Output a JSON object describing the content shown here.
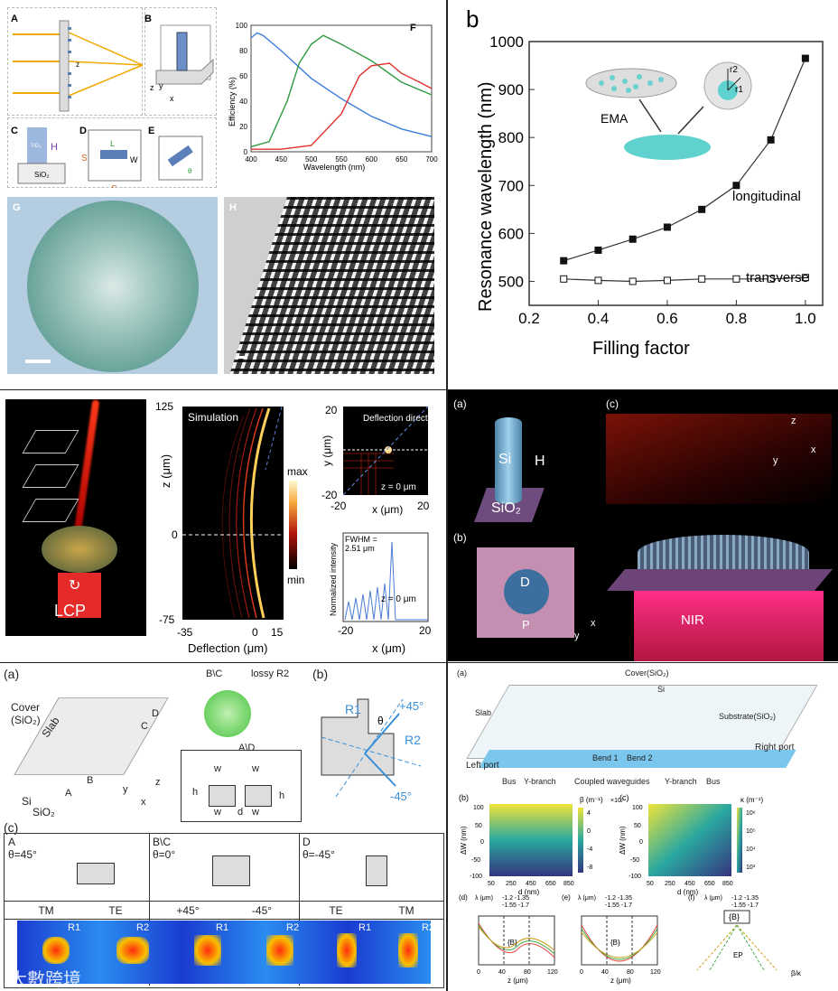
{
  "tl": {
    "A": "A",
    "B": "B",
    "C": "C",
    "D": "D",
    "E": "E",
    "F": "F",
    "G": "G",
    "H": "H",
    "tio2": "TiO₂",
    "sio2": "SiO₂",
    "h": "H",
    "l": "L",
    "w": "W",
    "s": "S",
    "theta": "θ",
    "axis_x": "x",
    "axis_y": "y",
    "axis_z": "z",
    "ylabel": "Efficiency (%)",
    "xlabel": "Wavelength (nm)",
    "yticks": [
      "0",
      "20",
      "40",
      "60",
      "80",
      "100"
    ],
    "xticks": [
      "400",
      "450",
      "500",
      "550",
      "600",
      "650",
      "700"
    ],
    "colors": {
      "blue": "#3b7ddd",
      "green": "#2e9a3f",
      "red": "#e0302b"
    }
  },
  "tr": {
    "label": "b",
    "ylabel": "Resonance wavelength (nm)",
    "xlabel": "Filling factor",
    "ema": "EMA",
    "longitudinal": "longitudinal",
    "transverse": "transverse",
    "r1": "r1",
    "r2": "r2",
    "yticks": [
      "500",
      "600",
      "700",
      "800",
      "900",
      "1000"
    ],
    "xticks": [
      "0.2",
      "0.4",
      "0.6",
      "0.8",
      "1.0"
    ]
  },
  "chart_data": [
    {
      "type": "line",
      "xlabel": "Wavelength (nm)",
      "ylabel": "Efficiency (%)",
      "xlim": [
        400,
        700
      ],
      "ylim": [
        0,
        100
      ],
      "series": [
        {
          "color": "#3b7ddd",
          "x": [
            400,
            410,
            420,
            450,
            500,
            550,
            600,
            650,
            700
          ],
          "values": [
            90,
            94,
            92,
            80,
            58,
            42,
            28,
            18,
            12
          ]
        },
        {
          "color": "#2e9a3f",
          "x": [
            400,
            430,
            460,
            480,
            500,
            520,
            550,
            600,
            650,
            700
          ],
          "values": [
            4,
            8,
            40,
            70,
            85,
            92,
            85,
            72,
            55,
            45
          ]
        },
        {
          "color": "#e0302b",
          "x": [
            400,
            450,
            500,
            550,
            580,
            600,
            630,
            650,
            680,
            700
          ],
          "values": [
            2,
            2,
            5,
            30,
            60,
            68,
            70,
            62,
            55,
            50
          ]
        }
      ]
    },
    {
      "type": "line",
      "xlabel": "Filling factor",
      "ylabel": "Resonance wavelength (nm)",
      "xlim": [
        0.2,
        1.05
      ],
      "ylim": [
        450,
        1000
      ],
      "series": [
        {
          "name": "longitudinal",
          "x": [
            0.3,
            0.4,
            0.5,
            0.6,
            0.7,
            0.8,
            0.9,
            1.0
          ],
          "values": [
            543,
            565,
            588,
            613,
            650,
            700,
            795,
            965
          ]
        },
        {
          "name": "transverse",
          "x": [
            0.3,
            0.4,
            0.5,
            0.6,
            0.7,
            0.8,
            0.9,
            1.0
          ],
          "values": [
            505,
            502,
            500,
            502,
            505,
            505,
            505,
            508
          ]
        }
      ]
    }
  ],
  "ml": {
    "lcp": "LCP",
    "sim": "Simulation",
    "defl_dir": "Deflection direction",
    "zlabel": "z (μm)",
    "xlabel": "Deflection (μm)",
    "max": "max",
    "min": "min",
    "zt": [
      "125",
      "0",
      "-75"
    ],
    "xt": [
      "-35",
      "0",
      "15"
    ],
    "ylab2": "y (μm)",
    "xlab2": "x (μm)",
    "t2": [
      "20",
      "-20",
      "-20",
      "20"
    ],
    "z0": "z = 0 μm",
    "z0b": "z = 0 μm",
    "fwhm": "FWHM =",
    "fwhm_v": "2.51 μm",
    "normint": "Normalized intensity",
    "t3": [
      "-20",
      "20"
    ],
    "xlab3": "x (μm)"
  },
  "mr": {
    "a": "(a)",
    "b": "(b)",
    "c": "(c)",
    "si": "Si",
    "h": "H",
    "sio2": "SiO₂",
    "d": "D",
    "p": "P",
    "nir": "NIR",
    "z": "z",
    "y": "y",
    "x": "x",
    "x2": "x",
    "y2": "y"
  },
  "bl": {
    "a": "(a)",
    "b": "(b)",
    "c": "(c)",
    "cover": "Cover",
    "cover2": "(SiO₂)",
    "slab": "Slab",
    "si": "Si",
    "sio2": "SiO₂",
    "A": "A",
    "B": "B",
    "C": "C",
    "D": "D",
    "BC": "B\\C",
    "AD": "A\\D",
    "lossy": "lossy R2",
    "ha": "h",
    "hb": "h",
    "wla": "w",
    "wra": "w",
    "wlb": "w",
    "wrb": "w",
    "dd": "d",
    "r1": "R1",
    "r2": "R2",
    "p45": "+45°",
    "m45": "-45°",
    "theta": "θ",
    "x": "x",
    "y": "y",
    "z": "z",
    "colA": "A",
    "colAth": "θ=45°",
    "colB": "B\\C",
    "colBth": "θ=0°",
    "colD": "D",
    "colDth": "θ=-45°",
    "modes": [
      "TM",
      "TE",
      "+45°",
      "-45°",
      "TE",
      "TM"
    ],
    "rlabels": [
      "R1",
      "R2",
      "R1",
      "R2",
      "R1",
      "R2"
    ]
  },
  "br": {
    "a": "(a)",
    "cover": "Cover(SiO₂)",
    "si": "Si",
    "slab": "Slab",
    "substrate": "Substrate(SiO₂)",
    "leftport": "Left port",
    "rightport": "Right port",
    "bend1": "Bend 1",
    "bend2": "Bend 2",
    "bus1": "Bus",
    "ybranch1": "Y-branch",
    "coupled": "Coupled waveguides",
    "ybranch2": "Y-branch",
    "bus2": "Bus",
    "b": "(b)",
    "c": "(c)",
    "d": "(d)",
    "e": "(e)",
    "f": "(f)",
    "dw": "ΔW (nm)",
    "dnm": "d (nm)",
    "beta": "β (m⁻¹)",
    "kappa": "κ (m⁻¹)",
    "yt": [
      "100",
      "50",
      "0",
      "-50",
      "-100"
    ],
    "xt": [
      "50",
      "250",
      "450",
      "650",
      "850"
    ],
    "cb1": [
      "4",
      "0",
      "-4",
      "-8"
    ],
    "cb1exp": "×10⁵",
    "cb2": [
      "10⁶",
      "10⁵",
      "10⁴",
      "10³"
    ],
    "lam": "λ (μm)",
    "lamvals": "-1.2  -1.35",
    "lamvals2": "-1.55 -1.7",
    "zlab": "z (μm)",
    "zt": [
      "0",
      "40",
      "80",
      "120"
    ],
    "B": "{B}",
    "betak": "β/κ",
    "ep": "EP"
  },
  "watermark": "大數跨境"
}
